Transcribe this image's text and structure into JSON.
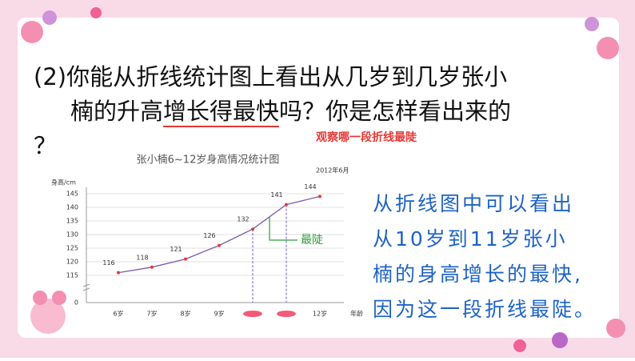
{
  "question": {
    "line1": "(2)你能从折线统计图上看出从几岁到几岁张小",
    "line2": [
      "楠的升高",
      "增长得最快",
      "吗？你是怎样看出来的"
    ],
    "line3": "？"
  },
  "annotation": "观察哪一段折线最陡",
  "answer": [
    "从折线图中可以看出",
    "从10岁到11岁张小",
    "楠的身高增长的最快,",
    "因为这一段折线最陡。"
  ],
  "chart_data": {
    "type": "line",
    "title": "张小楠6~12岁身高情况统计图",
    "subtitle": "2012年6月",
    "y_label": "身高/cm",
    "x_label": "年龄",
    "categories": [
      "6岁",
      "7岁",
      "8岁",
      "9岁",
      null,
      null,
      "12岁"
    ],
    "values": [
      116,
      118,
      121,
      126,
      132,
      141,
      144
    ],
    "color": "#e53935",
    "ylim": [
      115,
      145
    ],
    "yticks": [
      0,
      115,
      120,
      125,
      130,
      135,
      140,
      145
    ],
    "axis_break": true,
    "grid": true,
    "highlight_label": "最陡",
    "highlight_color": "#2e9e3a"
  }
}
